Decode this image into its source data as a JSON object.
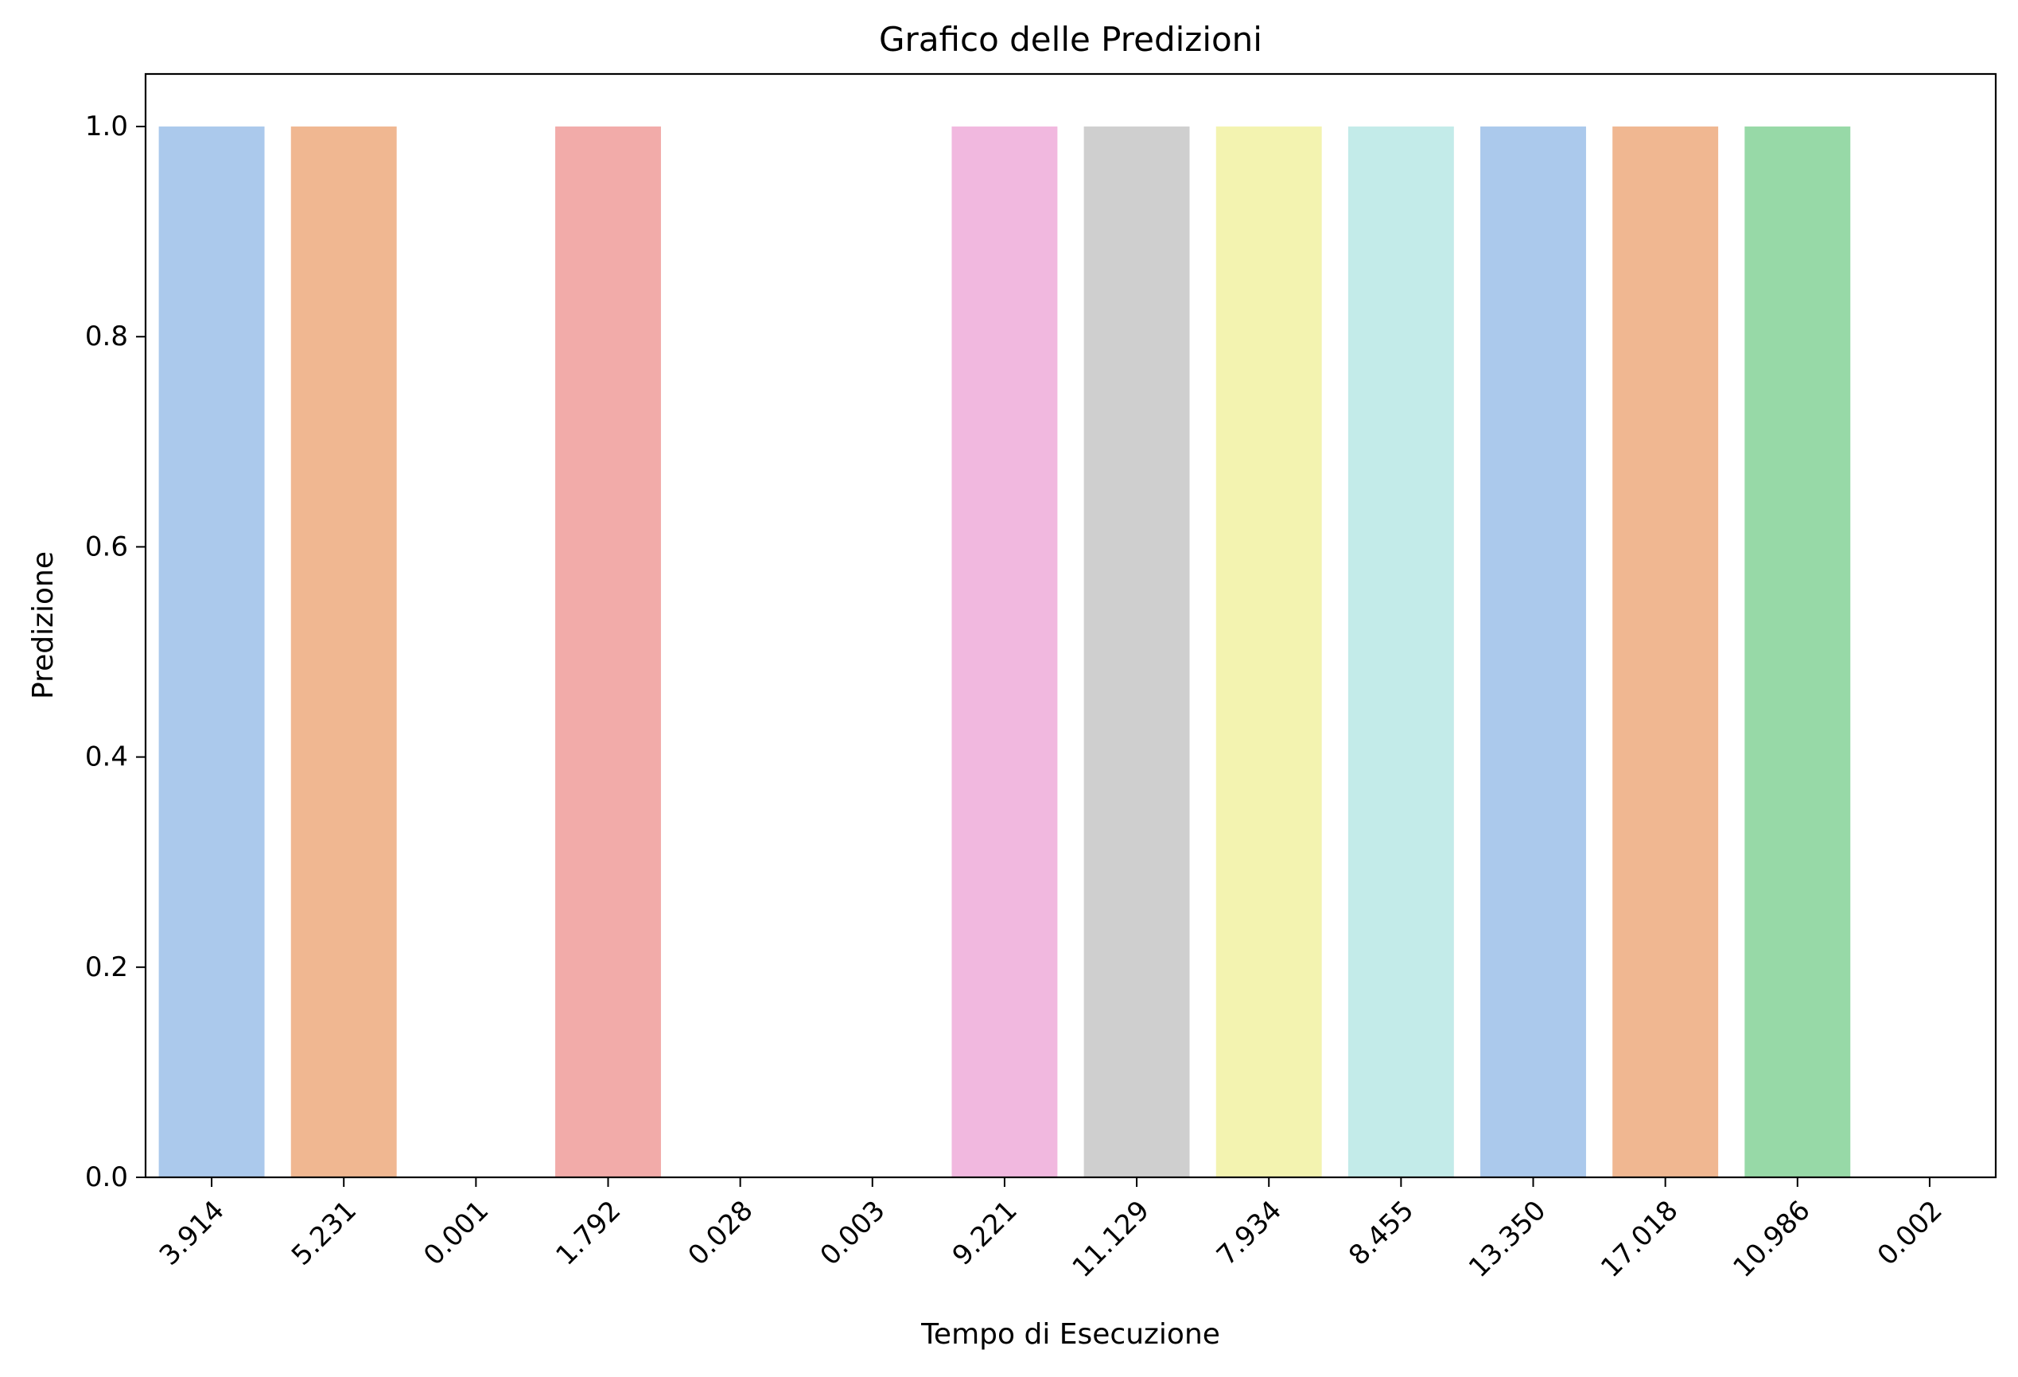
{
  "chart_data": {
    "type": "bar",
    "title": "Grafico delle Predizioni",
    "xlabel": "Tempo di Esecuzione",
    "ylabel": "Predizione",
    "categories": [
      "3.914",
      "5.231",
      "0.001",
      "1.792",
      "0.028",
      "0.003",
      "9.221",
      "11.129",
      "7.934",
      "8.455",
      "13.350",
      "17.018",
      "10.986",
      "0.002"
    ],
    "values": [
      1,
      1,
      0,
      1,
      0,
      0,
      1,
      1,
      1,
      1,
      1,
      1,
      1,
      0
    ],
    "colors": [
      "#abc9ec",
      "#f0b791",
      "#8de5a1",
      "#f2aba9",
      "#d0bbff",
      "#debb9b",
      "#f1b8df",
      "#cfcfcf",
      "#f3f3b0",
      "#c3ebe9",
      "#abc9ec",
      "#f0b791",
      "#97d9a7",
      "#f2aba9"
    ],
    "ylim": [
      0,
      1.05
    ],
    "yticks": [
      "0.0",
      "0.2",
      "0.4",
      "0.6",
      "0.8",
      "1.0"
    ],
    "grid": false,
    "legend": "none"
  }
}
